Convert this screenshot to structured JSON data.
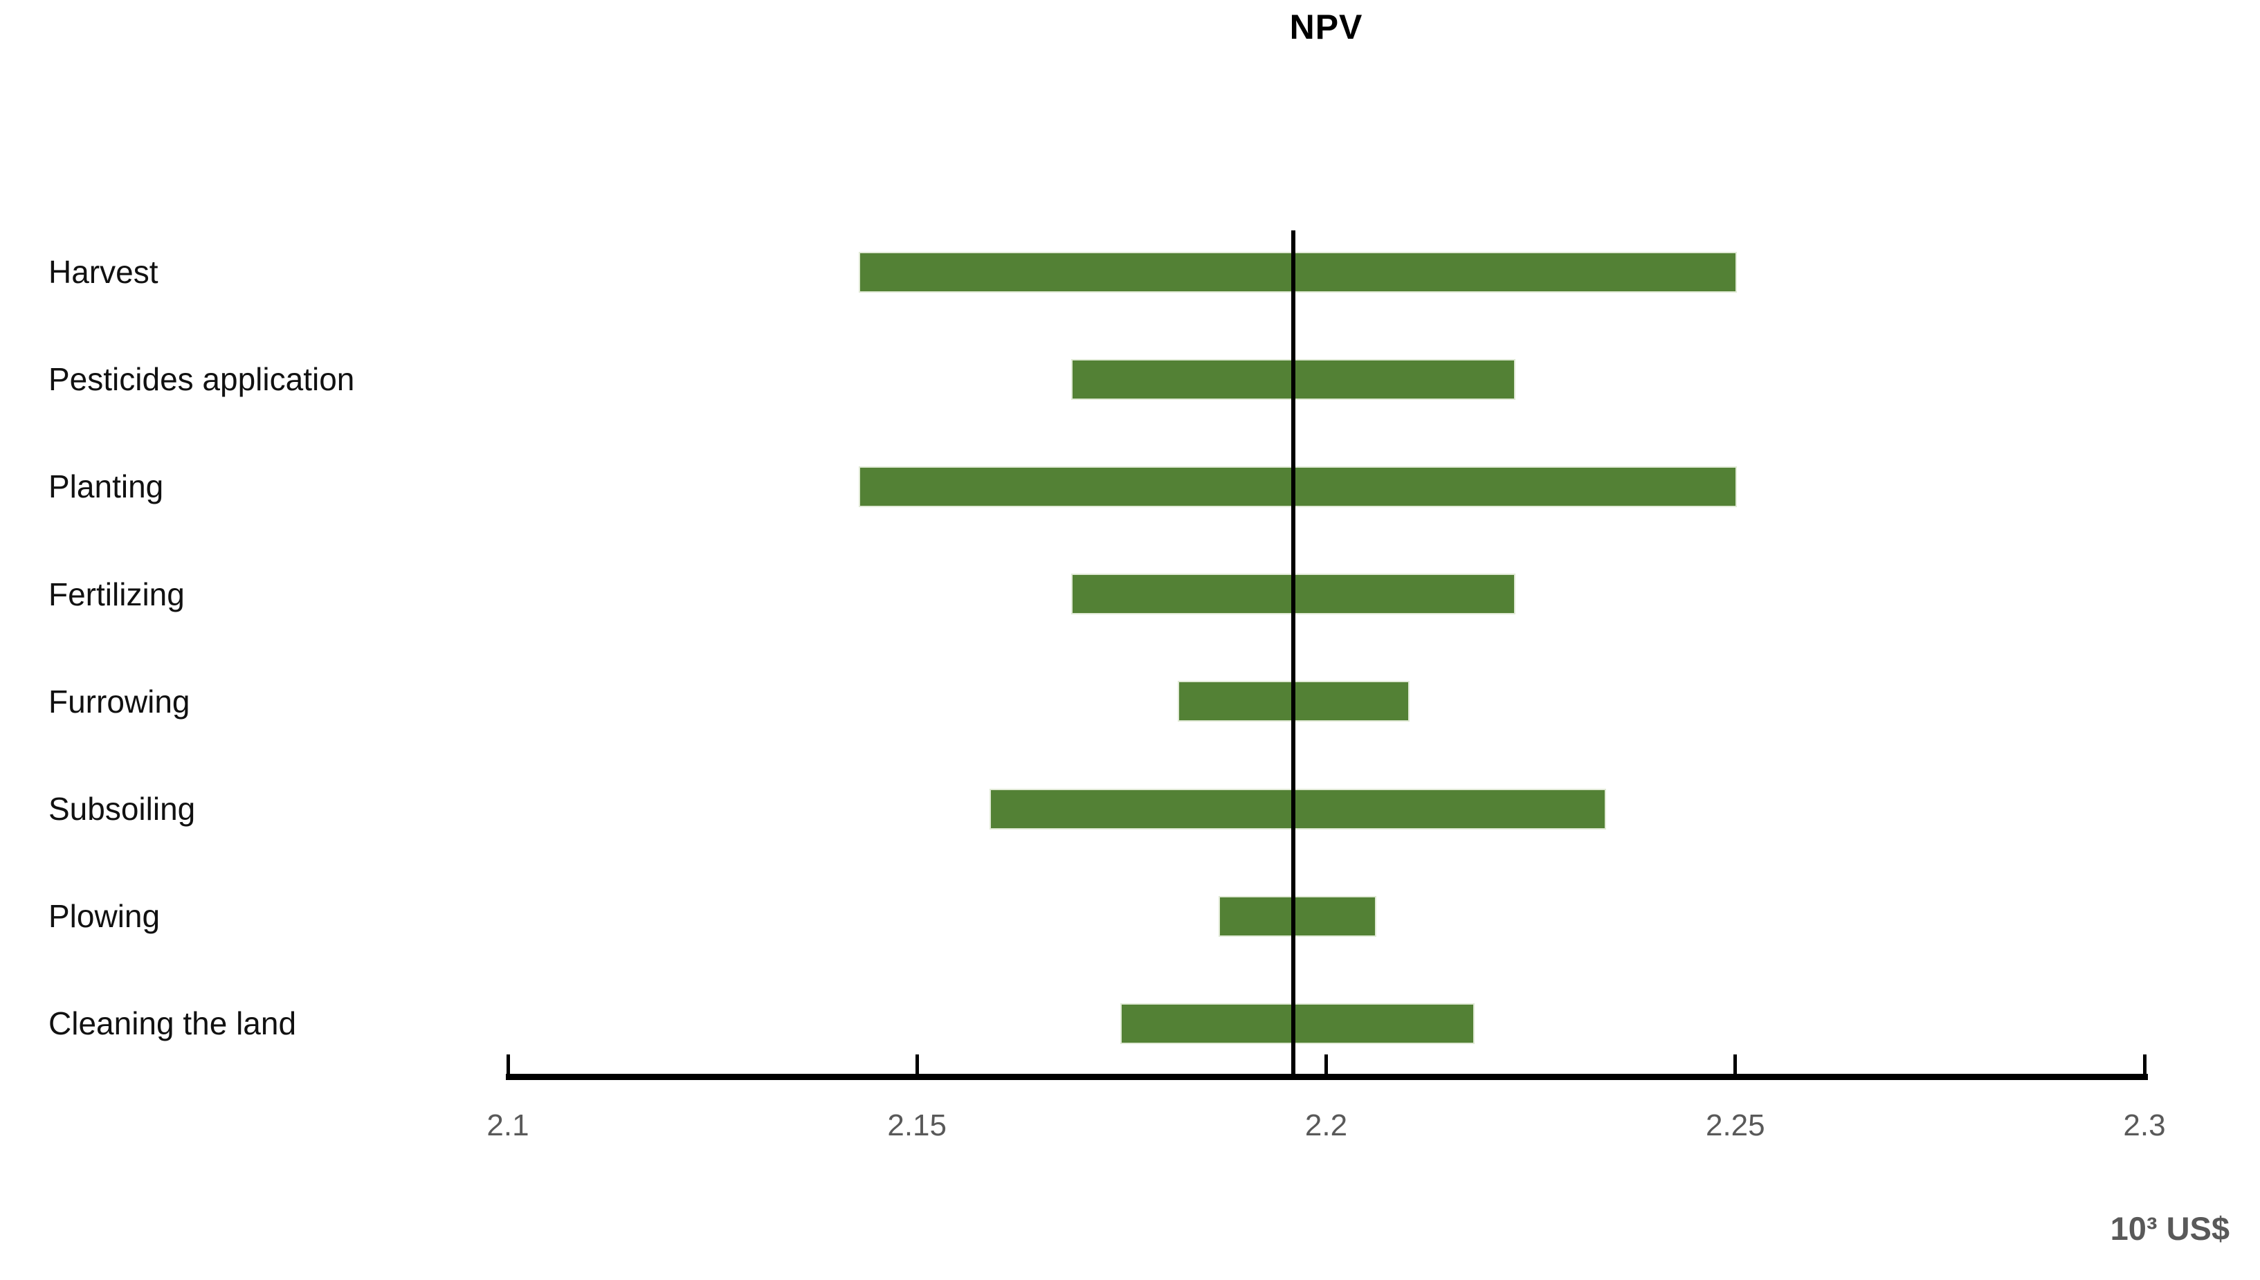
{
  "title": "NPV",
  "axis": {
    "unit_label": "10³ US$",
    "tick_labels": [
      "2.1",
      "2.15",
      "2.2",
      "2.25",
      "2.3"
    ]
  },
  "colors": {
    "bar": "#538135",
    "baseline": "#000000",
    "axis": "#000000",
    "tick_label": "#595959",
    "category_label": "#111111"
  },
  "chart_data": {
    "type": "bar",
    "subtype": "tornado-range",
    "orientation": "horizontal",
    "title": "NPV",
    "xlabel": "10³ US$",
    "xlim": [
      2.1,
      2.3
    ],
    "xticks": [
      2.1,
      2.15,
      2.2,
      2.25,
      2.3
    ],
    "grid": false,
    "baseline": 2.196,
    "categories": [
      "Harvest",
      "Pesticides application",
      "Planting",
      "Fertilizing",
      "Furrowing",
      "Subsoiling",
      "Plowing",
      "Cleaning the land"
    ],
    "ranges": [
      {
        "category": "Harvest",
        "low": 2.143,
        "high": 2.25
      },
      {
        "category": "Pesticides application",
        "low": 2.169,
        "high": 2.223
      },
      {
        "category": "Planting",
        "low": 2.143,
        "high": 2.25
      },
      {
        "category": "Fertilizing",
        "low": 2.169,
        "high": 2.223
      },
      {
        "category": "Furrowing",
        "low": 2.182,
        "high": 2.21
      },
      {
        "category": "Subsoiling",
        "low": 2.159,
        "high": 2.234
      },
      {
        "category": "Plowing",
        "low": 2.187,
        "high": 2.206
      },
      {
        "category": "Cleaning the land",
        "low": 2.175,
        "high": 2.218
      }
    ]
  }
}
